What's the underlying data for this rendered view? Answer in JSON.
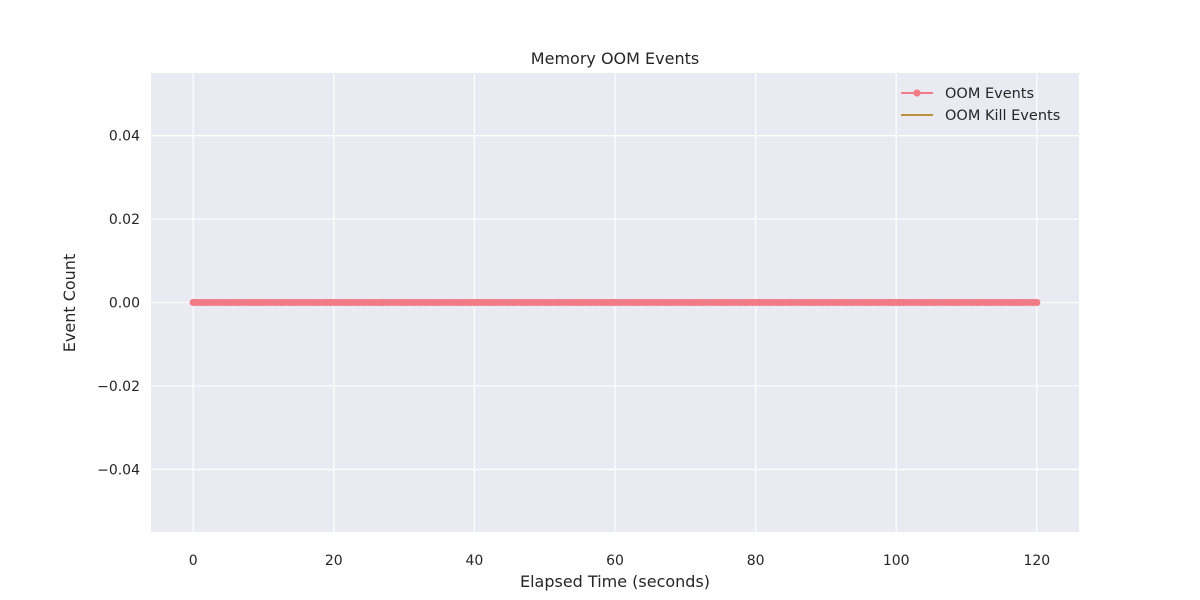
{
  "chart_data": {
    "type": "line",
    "title": "Memory OOM Events",
    "xlabel": "Elapsed Time (seconds)",
    "ylabel": "Event Count",
    "xlim": [
      -6,
      126
    ],
    "ylim": [
      -0.055,
      0.055
    ],
    "xticks": [
      0,
      20,
      40,
      60,
      80,
      100,
      120
    ],
    "yticks": [
      -0.04,
      -0.02,
      0.0,
      0.02,
      0.04
    ],
    "ytick_labels": [
      "−0.04",
      "−0.02",
      "0.00",
      "0.02",
      "0.04"
    ],
    "grid": true,
    "legend_position": "top-right",
    "x_start": 0,
    "x_end": 120,
    "x_step": 0.5,
    "series": [
      {
        "name": "OOM Events",
        "color": "#f07b86",
        "marker": "circle",
        "constant_value": 0
      },
      {
        "name": "OOM Kill Events",
        "color": "#b8913a",
        "marker": "none",
        "constant_value": 0
      }
    ],
    "colors": {
      "plot_background": "#eaeaf2",
      "grid": "#ffffff",
      "text": "#262626"
    }
  }
}
